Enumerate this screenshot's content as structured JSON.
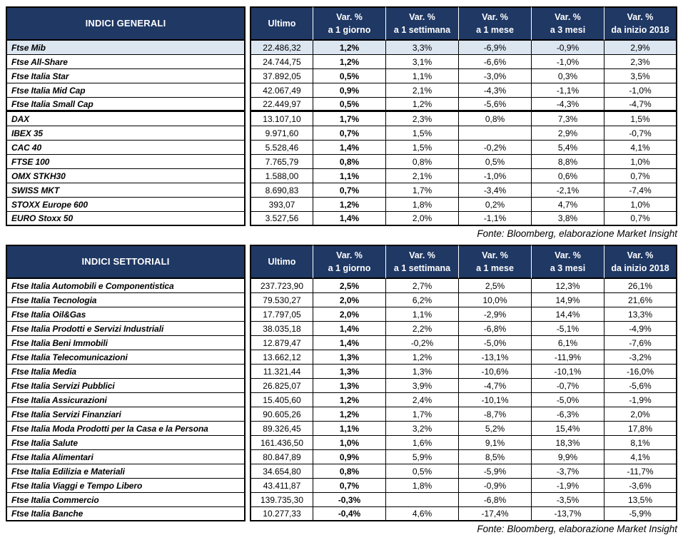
{
  "colors": {
    "header_bg": "#1F3864",
    "header_text": "#FFFFFF",
    "highlight_row_bg": "#DCE6F1",
    "border": "#000000"
  },
  "chart_data": [
    {
      "type": "table",
      "title": "INDICI GENERALI",
      "columns": [
        {
          "l1": "Ultimo",
          "l2": ""
        },
        {
          "l1": "Var. %",
          "l2": "a 1 giorno"
        },
        {
          "l1": "Var. %",
          "l2": "a 1 settimana"
        },
        {
          "l1": "Var. %",
          "l2": "a 1 mese"
        },
        {
          "l1": "Var. %",
          "l2": "a 3 mesi"
        },
        {
          "l1": "Var. %",
          "l2": "da inizio 2018"
        }
      ],
      "rows": [
        {
          "name": "Ftse Mib",
          "values": [
            "22.486,32",
            "1,2%",
            "3,3%",
            "-6,9%",
            "-0,9%",
            "2,9%"
          ],
          "highlight": true
        },
        {
          "name": "Ftse All-Share",
          "values": [
            "24.744,75",
            "1,2%",
            "3,1%",
            "-6,6%",
            "-1,0%",
            "2,3%"
          ]
        },
        {
          "name": "Ftse Italia Star",
          "values": [
            "37.892,05",
            "0,5%",
            "1,1%",
            "-3,0%",
            "0,3%",
            "3,5%"
          ]
        },
        {
          "name": "Ftse Italia Mid Cap",
          "values": [
            "42.067,49",
            "0,9%",
            "2,1%",
            "-4,3%",
            "-1,1%",
            "-1,0%"
          ]
        },
        {
          "name": "Ftse Italia Small Cap",
          "values": [
            "22.449,97",
            "0,5%",
            "1,2%",
            "-5,6%",
            "-4,3%",
            "-4,7%"
          ],
          "sep_after": true
        },
        {
          "name": "DAX",
          "values": [
            "13.107,10",
            "1,7%",
            "2,3%",
            "0,8%",
            "7,3%",
            "1,5%"
          ]
        },
        {
          "name": "IBEX 35",
          "values": [
            "9.971,60",
            "0,7%",
            "1,5%",
            "",
            "2,9%",
            "-0,7%"
          ]
        },
        {
          "name": "CAC 40",
          "values": [
            "5.528,46",
            "1,4%",
            "1,5%",
            "-0,2%",
            "5,4%",
            "4,1%"
          ]
        },
        {
          "name": "FTSE 100",
          "values": [
            "7.765,79",
            "0,8%",
            "0,8%",
            "0,5%",
            "8,8%",
            "1,0%"
          ]
        },
        {
          "name": "OMX STKH30",
          "values": [
            "1.588,00",
            "1,1%",
            "2,1%",
            "-1,0%",
            "0,6%",
            "0,7%"
          ]
        },
        {
          "name": "SWISS MKT",
          "values": [
            "8.690,83",
            "0,7%",
            "1,7%",
            "-3,4%",
            "-2,1%",
            "-7,4%"
          ]
        },
        {
          "name": "STOXX Europe 600",
          "values": [
            "393,07",
            "1,2%",
            "1,8%",
            "0,2%",
            "4,7%",
            "1,0%"
          ]
        },
        {
          "name": "EURO Stoxx 50",
          "values": [
            "3.527,56",
            "1,4%",
            "2,0%",
            "-1,1%",
            "3,8%",
            "0,7%"
          ]
        }
      ],
      "source": "Fonte: Bloomberg, elaborazione Market Insight"
    },
    {
      "type": "table",
      "title": "INDICI SETTORIALI",
      "columns": [
        {
          "l1": "Ultimo",
          "l2": ""
        },
        {
          "l1": "Var. %",
          "l2": "a 1 giorno"
        },
        {
          "l1": "Var. %",
          "l2": "a 1 settimana"
        },
        {
          "l1": "Var. %",
          "l2": "a 1 mese"
        },
        {
          "l1": "Var. %",
          "l2": "a 3 mesi"
        },
        {
          "l1": "Var. %",
          "l2": "da inizio 2018"
        }
      ],
      "rows": [
        {
          "name": "Ftse Italia Automobili e Componentistica",
          "values": [
            "237.723,90",
            "2,5%",
            "2,7%",
            "2,5%",
            "12,3%",
            "26,1%"
          ]
        },
        {
          "name": "Ftse Italia Tecnologia",
          "values": [
            "79.530,27",
            "2,0%",
            "6,2%",
            "10,0%",
            "14,9%",
            "21,6%"
          ]
        },
        {
          "name": "Ftse Italia Oil&Gas",
          "values": [
            "17.797,05",
            "2,0%",
            "1,1%",
            "-2,9%",
            "14,4%",
            "13,3%"
          ]
        },
        {
          "name": "Ftse Italia Prodotti e Servizi Industriali",
          "values": [
            "38.035,18",
            "1,4%",
            "2,2%",
            "-6,8%",
            "-5,1%",
            "-4,9%"
          ]
        },
        {
          "name": "Ftse Italia Beni Immobili",
          "values": [
            "12.879,47",
            "1,4%",
            "-0,2%",
            "-5,0%",
            "6,1%",
            "-7,6%"
          ]
        },
        {
          "name": "Ftse Italia Telecomunicazioni",
          "values": [
            "13.662,12",
            "1,3%",
            "1,2%",
            "-13,1%",
            "-11,9%",
            "-3,2%"
          ]
        },
        {
          "name": "Ftse Italia Media",
          "values": [
            "11.321,44",
            "1,3%",
            "1,3%",
            "-10,6%",
            "-10,1%",
            "-16,0%"
          ]
        },
        {
          "name": "Ftse Italia Servizi Pubblici",
          "values": [
            "26.825,07",
            "1,3%",
            "3,9%",
            "-4,7%",
            "-0,7%",
            "-5,6%"
          ]
        },
        {
          "name": "Ftse Italia Assicurazioni",
          "values": [
            "15.405,60",
            "1,2%",
            "2,4%",
            "-10,1%",
            "-5,0%",
            "-1,9%"
          ]
        },
        {
          "name": "Ftse Italia Servizi Finanziari",
          "values": [
            "90.605,26",
            "1,2%",
            "1,7%",
            "-8,7%",
            "-6,3%",
            "2,0%"
          ]
        },
        {
          "name": "Ftse Italia Moda Prodotti per la Casa e la Persona",
          "values": [
            "89.326,45",
            "1,1%",
            "3,2%",
            "5,2%",
            "15,4%",
            "17,8%"
          ]
        },
        {
          "name": "Ftse Italia Salute",
          "values": [
            "161.436,50",
            "1,0%",
            "1,6%",
            "9,1%",
            "18,3%",
            "8,1%"
          ]
        },
        {
          "name": "Ftse Italia Alimentari",
          "values": [
            "80.847,89",
            "0,9%",
            "5,9%",
            "8,5%",
            "9,9%",
            "4,1%"
          ]
        },
        {
          "name": "Ftse Italia Edilizia e Materiali",
          "values": [
            "34.654,80",
            "0,8%",
            "0,5%",
            "-5,9%",
            "-3,7%",
            "-11,7%"
          ]
        },
        {
          "name": "Ftse Italia Viaggi e Tempo Libero",
          "values": [
            "43.411,87",
            "0,7%",
            "1,8%",
            "-0,9%",
            "-1,9%",
            "-3,6%"
          ]
        },
        {
          "name": "Ftse Italia Commercio",
          "values": [
            "139.735,30",
            "-0,3%",
            "",
            "-6,8%",
            "-3,5%",
            "13,5%"
          ]
        },
        {
          "name": "Ftse Italia Banche",
          "values": [
            "10.277,33",
            "-0,4%",
            "4,6%",
            "-17,4%",
            "-13,7%",
            "-5,9%"
          ]
        }
      ],
      "source": "Fonte: Bloomberg, elaborazione Market Insight"
    }
  ]
}
